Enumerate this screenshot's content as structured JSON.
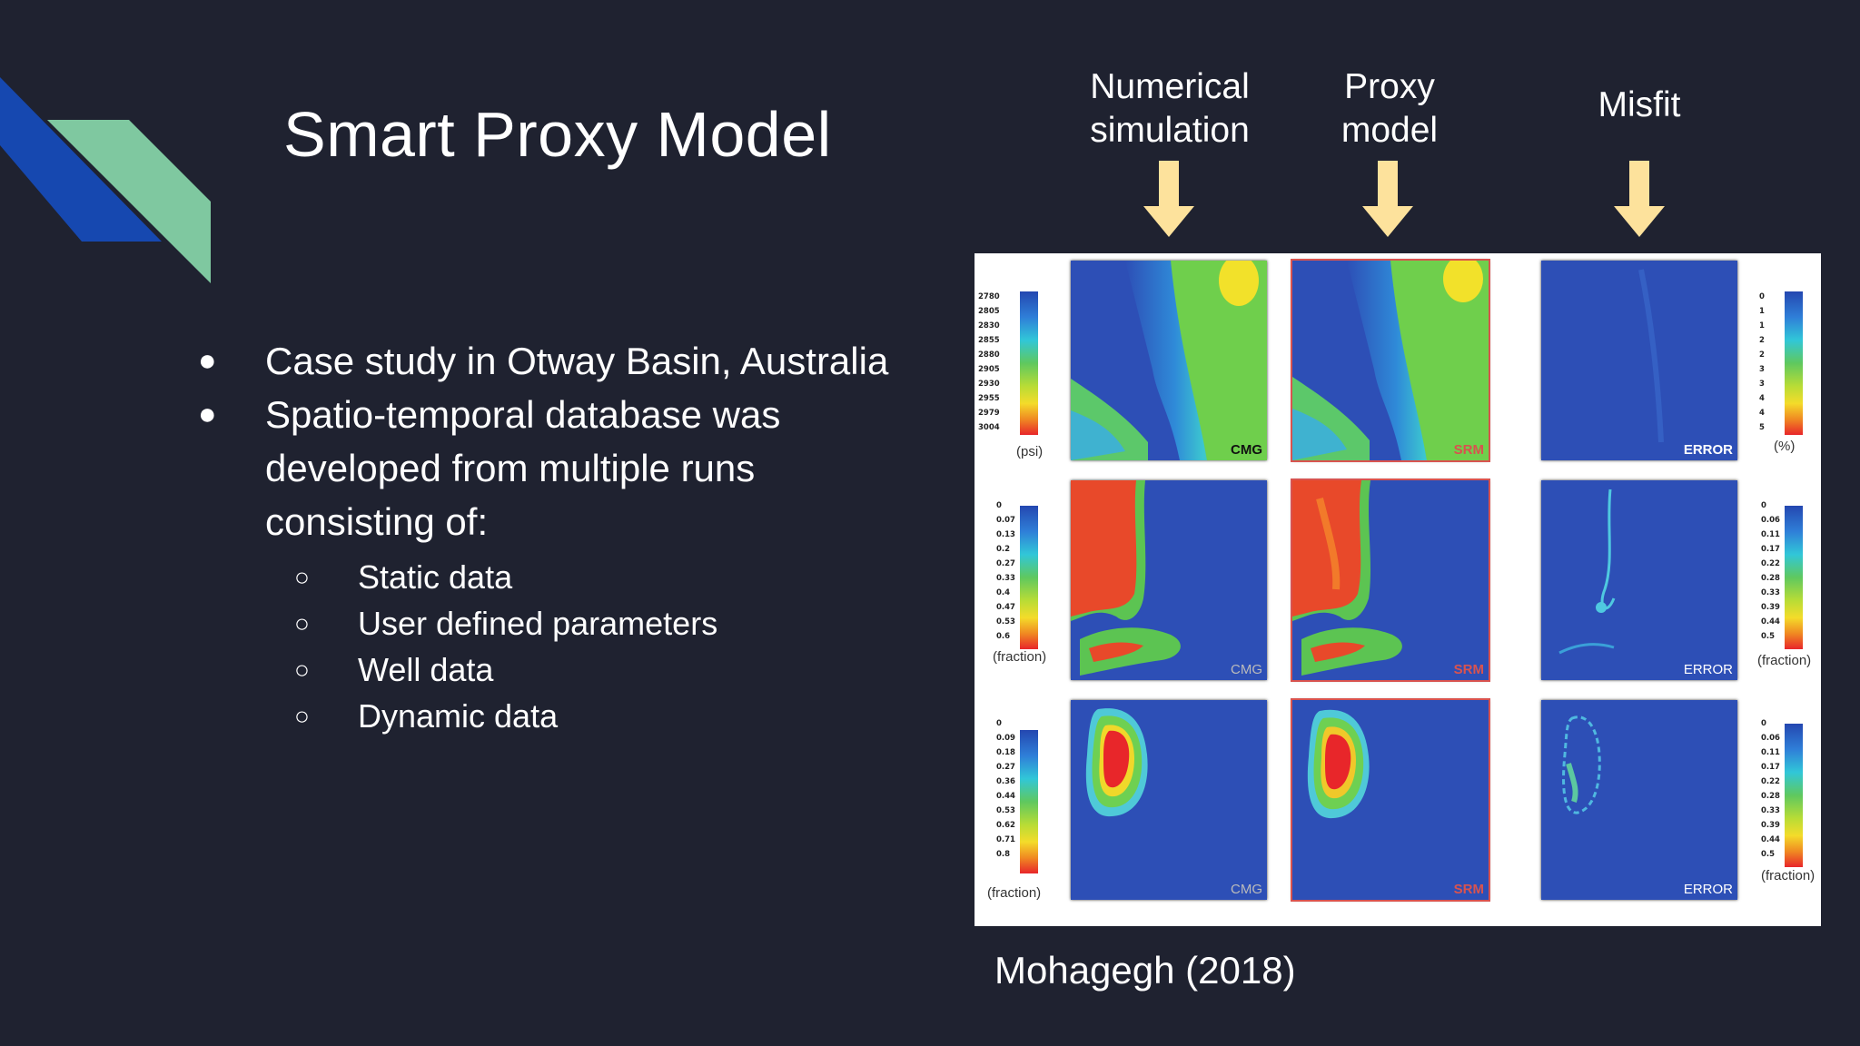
{
  "slide": {
    "title": "Smart Proxy Model",
    "bullets": [
      {
        "marker": "●",
        "text": "Case study in Otway Basin, Australia"
      },
      {
        "marker": "●",
        "text": "Spatio-temporal database was developed from multiple runs consisting of:"
      }
    ],
    "sub_bullets": [
      {
        "marker": "○",
        "text": "Static data"
      },
      {
        "marker": "○",
        "text": "User defined parameters"
      },
      {
        "marker": "○",
        "text": "Well data"
      },
      {
        "marker": "○",
        "text": "Dynamic data"
      }
    ],
    "column_headers": {
      "numerical": "Numerical simulation",
      "proxy": "Proxy model",
      "misfit": "Misfit"
    },
    "citation": "Mohagegh (2018)"
  },
  "figure": {
    "panel_labels": {
      "cmg": "CMG",
      "srm": "SRM",
      "error": "ERROR"
    },
    "rows": [
      {
        "left_scale_ticks": [
          "2780",
          "2805",
          "2830",
          "2855",
          "2880",
          "2905",
          "2930",
          "2955",
          "2979",
          "3004"
        ],
        "left_unit": "(psi)",
        "right_scale_ticks": [
          "0",
          "1",
          "1",
          "2",
          "2",
          "3",
          "3",
          "4",
          "4",
          "5"
        ],
        "right_unit": "(%)"
      },
      {
        "left_scale_ticks": [
          "0",
          "0.07",
          "0.13",
          "0.2",
          "0.27",
          "0.33",
          "0.4",
          "0.47",
          "0.53",
          "0.6"
        ],
        "left_unit": "(fraction)",
        "right_scale_ticks": [
          "0",
          "0.06",
          "0.11",
          "0.17",
          "0.22",
          "0.28",
          "0.33",
          "0.39",
          "0.44",
          "0.5"
        ],
        "right_unit": "(fraction)"
      },
      {
        "left_scale_ticks": [
          "0",
          "0.09",
          "0.18",
          "0.27",
          "0.36",
          "0.44",
          "0.53",
          "0.62",
          "0.71",
          "0.8"
        ],
        "left_unit": "(fraction)",
        "right_scale_ticks": [
          "0",
          "0.06",
          "0.11",
          "0.17",
          "0.22",
          "0.28",
          "0.33",
          "0.39",
          "0.44",
          "0.5"
        ],
        "right_unit": "(fraction)"
      }
    ]
  },
  "colors": {
    "background": "#1f2230",
    "accent_blue": "#1648b0",
    "accent_green": "#7fc8a0",
    "arrow_yellow": "#fde29c",
    "map_blue": "#2d4fb6"
  }
}
